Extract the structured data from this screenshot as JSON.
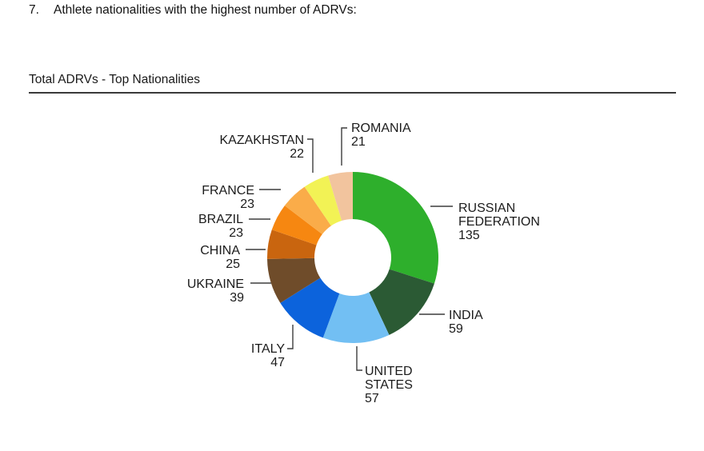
{
  "heading": {
    "number": "7.",
    "text": "Athlete nationalities with the highest number of ADRVs:"
  },
  "chart_data": {
    "type": "pie",
    "donut": true,
    "title": "Total ADRVs - Top Nationalities",
    "start_angle_deg": 0,
    "direction": "clockwise",
    "legend_position": "none",
    "slices": [
      {
        "label": "RUSSIAN FEDERATION",
        "label_lines": [
          "RUSSIAN",
          "FEDERATION"
        ],
        "value": 135,
        "color": "#2EAF2C"
      },
      {
        "label": "INDIA",
        "label_lines": [
          "INDIA"
        ],
        "value": 59,
        "color": "#2B5A34"
      },
      {
        "label": "UNITED STATES",
        "label_lines": [
          "UNITED",
          "STATES"
        ],
        "value": 57,
        "color": "#72BFF3"
      },
      {
        "label": "ITALY",
        "label_lines": [
          "ITALY"
        ],
        "value": 47,
        "color": "#0C63DC"
      },
      {
        "label": "UKRAINE",
        "label_lines": [
          "UKRAINE"
        ],
        "value": 39,
        "color": "#6F4C2A"
      },
      {
        "label": "CHINA",
        "label_lines": [
          "CHINA"
        ],
        "value": 25,
        "color": "#C9650F"
      },
      {
        "label": "BRAZIL",
        "label_lines": [
          "BRAZIL"
        ],
        "value": 23,
        "color": "#F68711"
      },
      {
        "label": "FRANCE",
        "label_lines": [
          "FRANCE"
        ],
        "value": 23,
        "color": "#FAAC49"
      },
      {
        "label": "KAZAKHSTAN",
        "label_lines": [
          "KAZAKHSTAN"
        ],
        "value": 22,
        "color": "#F2F255"
      },
      {
        "label": "ROMANIA",
        "label_lines": [
          "ROMANIA"
        ],
        "value": 21,
        "color": "#F2C49E"
      }
    ]
  }
}
